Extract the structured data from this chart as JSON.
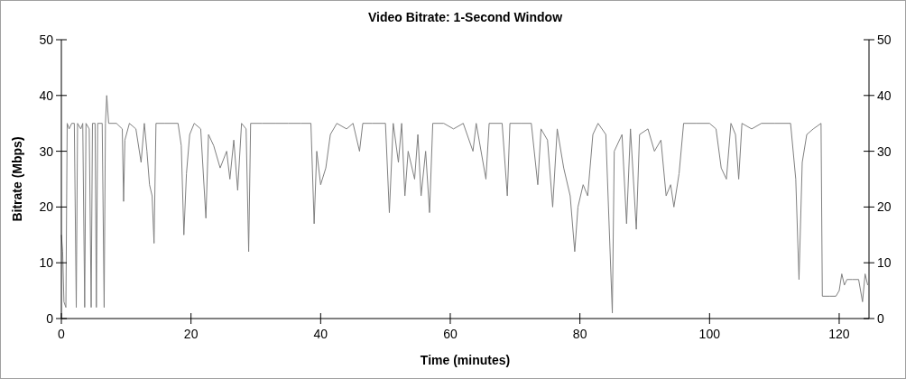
{
  "chart_data": {
    "type": "line",
    "title": "Video Bitrate: 1-Second Window",
    "xlabel": "Time (minutes)",
    "ylabel": "Bitrate (Mbps)",
    "xlim": [
      0,
      124.6
    ],
    "xticks": [
      0,
      20,
      40,
      60,
      80,
      100,
      120
    ],
    "ylim": [
      0,
      50
    ],
    "yticks": [
      0,
      10,
      20,
      30,
      40,
      50
    ],
    "y2lim": [
      0,
      50
    ],
    "y2ticks": [
      0,
      10,
      20,
      30,
      40,
      50
    ],
    "x": [
      0,
      0.2,
      0.4,
      0.7,
      0.9,
      1.2,
      1.6,
      2.0,
      2.3,
      2.5,
      3.0,
      3.3,
      3.6,
      3.8,
      4.3,
      4.6,
      4.8,
      5.2,
      5.4,
      5.6,
      6.3,
      6.6,
      6.8,
      7.0,
      7.3,
      8.5,
      9.4,
      9.6,
      9.8,
      10.5,
      11.5,
      12.3,
      12.8,
      13.2,
      13.6,
      14.0,
      14.3,
      14.6,
      16.0,
      18.0,
      18.5,
      18.9,
      19.3,
      19.8,
      20.5,
      21.5,
      22.3,
      22.7,
      23.5,
      24.5,
      25.5,
      26.0,
      26.6,
      27.2,
      27.8,
      28.5,
      28.9,
      29.2,
      31,
      33,
      35,
      37,
      38.5,
      39.0,
      39.4,
      40.0,
      40.8,
      41.5,
      42.5,
      44,
      45,
      46,
      46.5,
      48,
      50,
      50.6,
      51.2,
      52,
      52.5,
      53,
      53.5,
      54.5,
      55,
      55.5,
      56.2,
      56.8,
      57.3,
      59,
      60.5,
      62,
      63.5,
      64,
      65.5,
      66,
      68,
      68.8,
      69.2,
      71,
      72.5,
      73.5,
      74,
      75,
      75.8,
      76.5,
      77.5,
      78.5,
      79.2,
      79.7,
      80.5,
      81.2,
      82,
      82.8,
      84,
      85.0,
      85.3,
      86.5,
      87.2,
      87.8,
      88.7,
      89.2,
      90.5,
      91.5,
      92.5,
      93.3,
      94,
      94.5,
      95.3,
      96,
      98,
      100,
      101,
      101.8,
      102.6,
      103.3,
      104,
      104.5,
      105,
      106.5,
      108,
      110,
      112.5,
      113.3,
      113.8,
      114.3,
      115,
      116,
      117.2,
      117.4,
      118.5,
      119.5,
      120,
      120.4,
      120.8,
      121.2,
      122,
      123,
      123.6,
      124,
      124.4
    ],
    "series": [
      {
        "color": "#808080",
        "values": [
          15,
          12,
          3,
          2,
          35,
          34,
          35,
          35,
          2,
          35,
          34,
          35,
          2,
          35,
          34,
          2,
          35,
          35,
          2,
          35,
          35,
          2,
          35,
          40,
          35,
          35,
          34,
          21,
          32,
          35,
          34,
          28,
          35,
          30,
          24,
          22,
          13.5,
          35,
          35,
          35,
          31,
          15,
          26,
          33,
          35,
          34,
          18,
          33,
          31,
          27,
          30,
          25,
          32,
          23,
          35,
          34,
          12,
          35,
          35,
          35,
          35,
          35,
          35,
          17,
          30,
          24,
          27,
          33,
          35,
          34,
          35,
          30,
          35,
          35,
          35,
          19,
          35,
          28,
          35,
          22,
          30,
          25,
          33,
          22,
          30,
          19,
          35,
          35,
          34,
          35,
          30,
          35,
          25,
          35,
          35,
          22,
          35,
          35,
          35,
          24,
          34,
          32,
          20,
          34,
          27,
          22,
          12,
          20,
          24,
          22,
          33,
          35,
          33,
          1,
          30,
          33,
          17,
          34,
          16,
          33,
          34,
          30,
          32,
          22,
          24,
          20,
          26,
          35,
          35,
          35,
          34,
          27,
          25,
          35,
          33,
          25,
          35,
          34,
          35,
          35,
          35,
          25,
          7,
          28,
          33,
          34,
          35,
          4,
          4,
          4,
          5,
          8,
          6,
          7,
          7,
          7,
          3,
          8,
          6
        ]
      }
    ]
  }
}
